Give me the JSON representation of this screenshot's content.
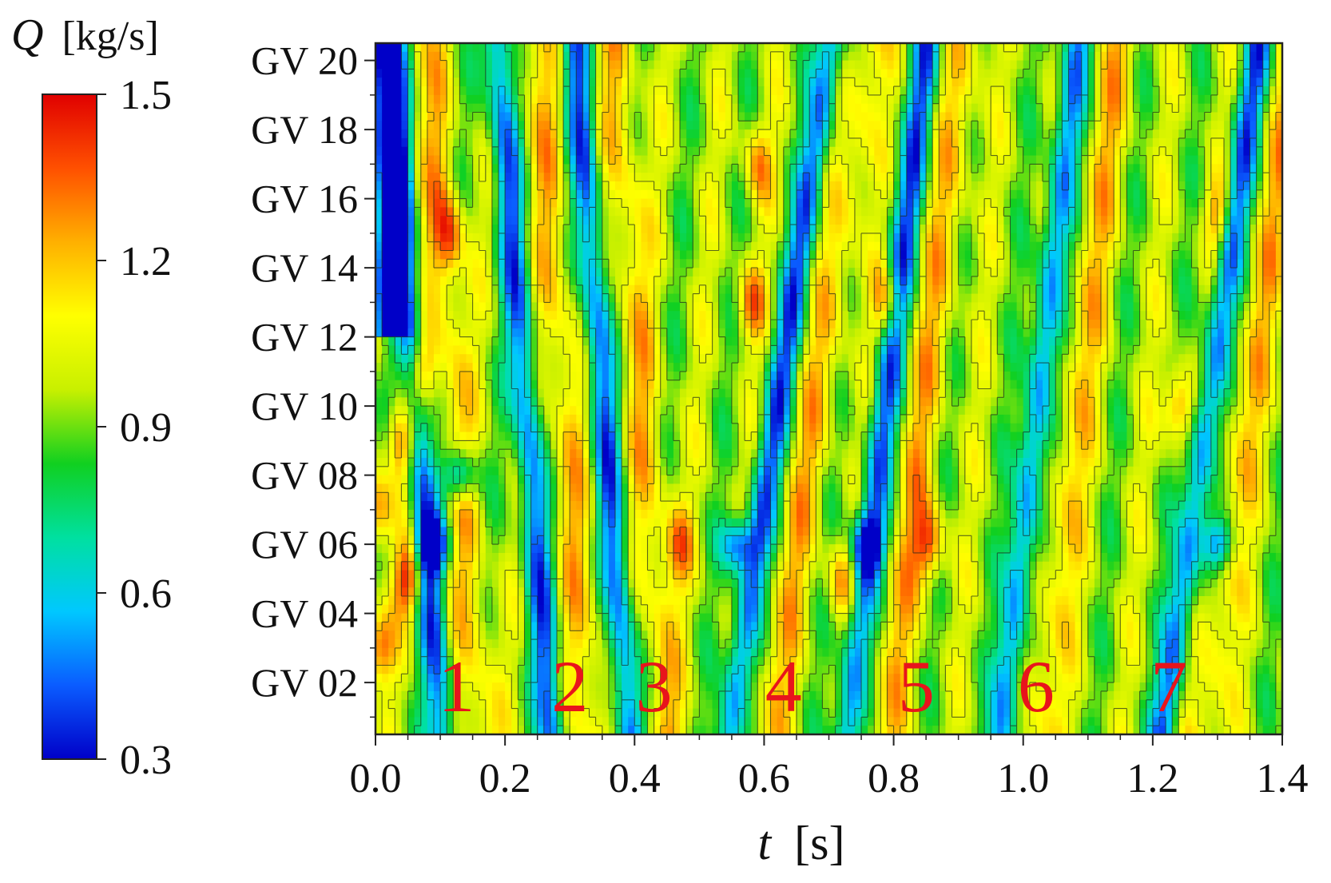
{
  "chart_data": {
    "type": "heatmap",
    "title": "",
    "xlabel_var": "t",
    "xlabel_unit": "[s]",
    "ylabel": "",
    "colorbar": {
      "label_var": "Q",
      "label_unit": "[kg/s]",
      "min": 0.3,
      "max": 1.5,
      "ticks": [
        "1.5",
        "1.2",
        "0.9",
        "0.6",
        "0.3"
      ],
      "colormap": [
        "#0000c8",
        "#0a5cff",
        "#00c8ff",
        "#00e0a0",
        "#10d020",
        "#c8f000",
        "#ffff00",
        "#ffb000",
        "#ff5000",
        "#e00000"
      ]
    },
    "xlim": [
      0.0,
      1.4
    ],
    "x_ticks": [
      "0.0",
      "0.2",
      "0.4",
      "0.6",
      "0.8",
      "1.0",
      "1.2",
      "1.4"
    ],
    "y_categories": [
      "GV 20",
      "GV 18",
      "GV 16",
      "GV 14",
      "GV 12",
      "GV 10",
      "GV 08",
      "GV 06",
      "GV 04",
      "GV 02"
    ],
    "y_index_range": [
      1,
      20
    ],
    "annotations": [
      {
        "text": "1",
        "t": 0.125,
        "gv": 2.6
      },
      {
        "text": "2",
        "t": 0.3,
        "gv": 2.6
      },
      {
        "text": "3",
        "t": 0.43,
        "gv": 2.6
      },
      {
        "text": "4",
        "t": 0.63,
        "gv": 2.6
      },
      {
        "text": "5",
        "t": 0.835,
        "gv": 2.6
      },
      {
        "text": "6",
        "t": 1.02,
        "gv": 2.6
      },
      {
        "text": "7",
        "t": 1.225,
        "gv": 2.6
      }
    ],
    "low_flow_bands": [
      {
        "t_at_gv1": 0.1,
        "t_at_gv20": 0.02
      },
      {
        "t_at_gv1": 0.27,
        "t_at_gv20": 0.19
      },
      {
        "t_at_gv1": 0.39,
        "t_at_gv20": 0.31
      },
      {
        "t_at_gv1": 0.55,
        "t_at_gv20": 0.7
      },
      {
        "t_at_gv1": 0.73,
        "t_at_gv20": 0.85
      },
      {
        "t_at_gv1": 0.97,
        "t_at_gv20": 1.08
      },
      {
        "t_at_gv1": 1.22,
        "t_at_gv20": 1.36
      }
    ],
    "high_spots": [
      {
        "t": 0.005,
        "gv": 3,
        "q": 1.45
      },
      {
        "t": 0.05,
        "gv": 5,
        "q": 1.5
      },
      {
        "t": 0.005,
        "gv": 7,
        "q": 1.45
      },
      {
        "t": 0.04,
        "gv": 9,
        "q": 1.45
      },
      {
        "t": 0.07,
        "gv": 11,
        "q": 1.42
      },
      {
        "t": 0.115,
        "gv": 15,
        "q": 1.35
      },
      {
        "t": 0.58,
        "gv": 13,
        "q": 1.35
      },
      {
        "t": 0.59,
        "gv": 17,
        "q": 1.32
      },
      {
        "t": 0.79,
        "gv": 13,
        "q": 1.38
      },
      {
        "t": 0.855,
        "gv": 6,
        "q": 1.45
      },
      {
        "t": 1.24,
        "gv": 10,
        "q": 1.42
      },
      {
        "t": 1.3,
        "gv": 15.5,
        "q": 1.3
      },
      {
        "t": 0.47,
        "gv": 6,
        "q": 1.3
      },
      {
        "t": 0.72,
        "gv": 5,
        "q": 1.3
      }
    ],
    "low_spots": [
      {
        "t": 0.13,
        "gv": 8,
        "q": 0.3
      },
      {
        "t": 0.09,
        "gv": 6,
        "q": 0.3
      },
      {
        "t": 0.56,
        "gv": 6,
        "q": 0.35
      },
      {
        "t": 0.76,
        "gv": 6,
        "q": 0.35
      },
      {
        "t": 1.3,
        "gv": 6,
        "q": 0.35
      }
    ]
  }
}
